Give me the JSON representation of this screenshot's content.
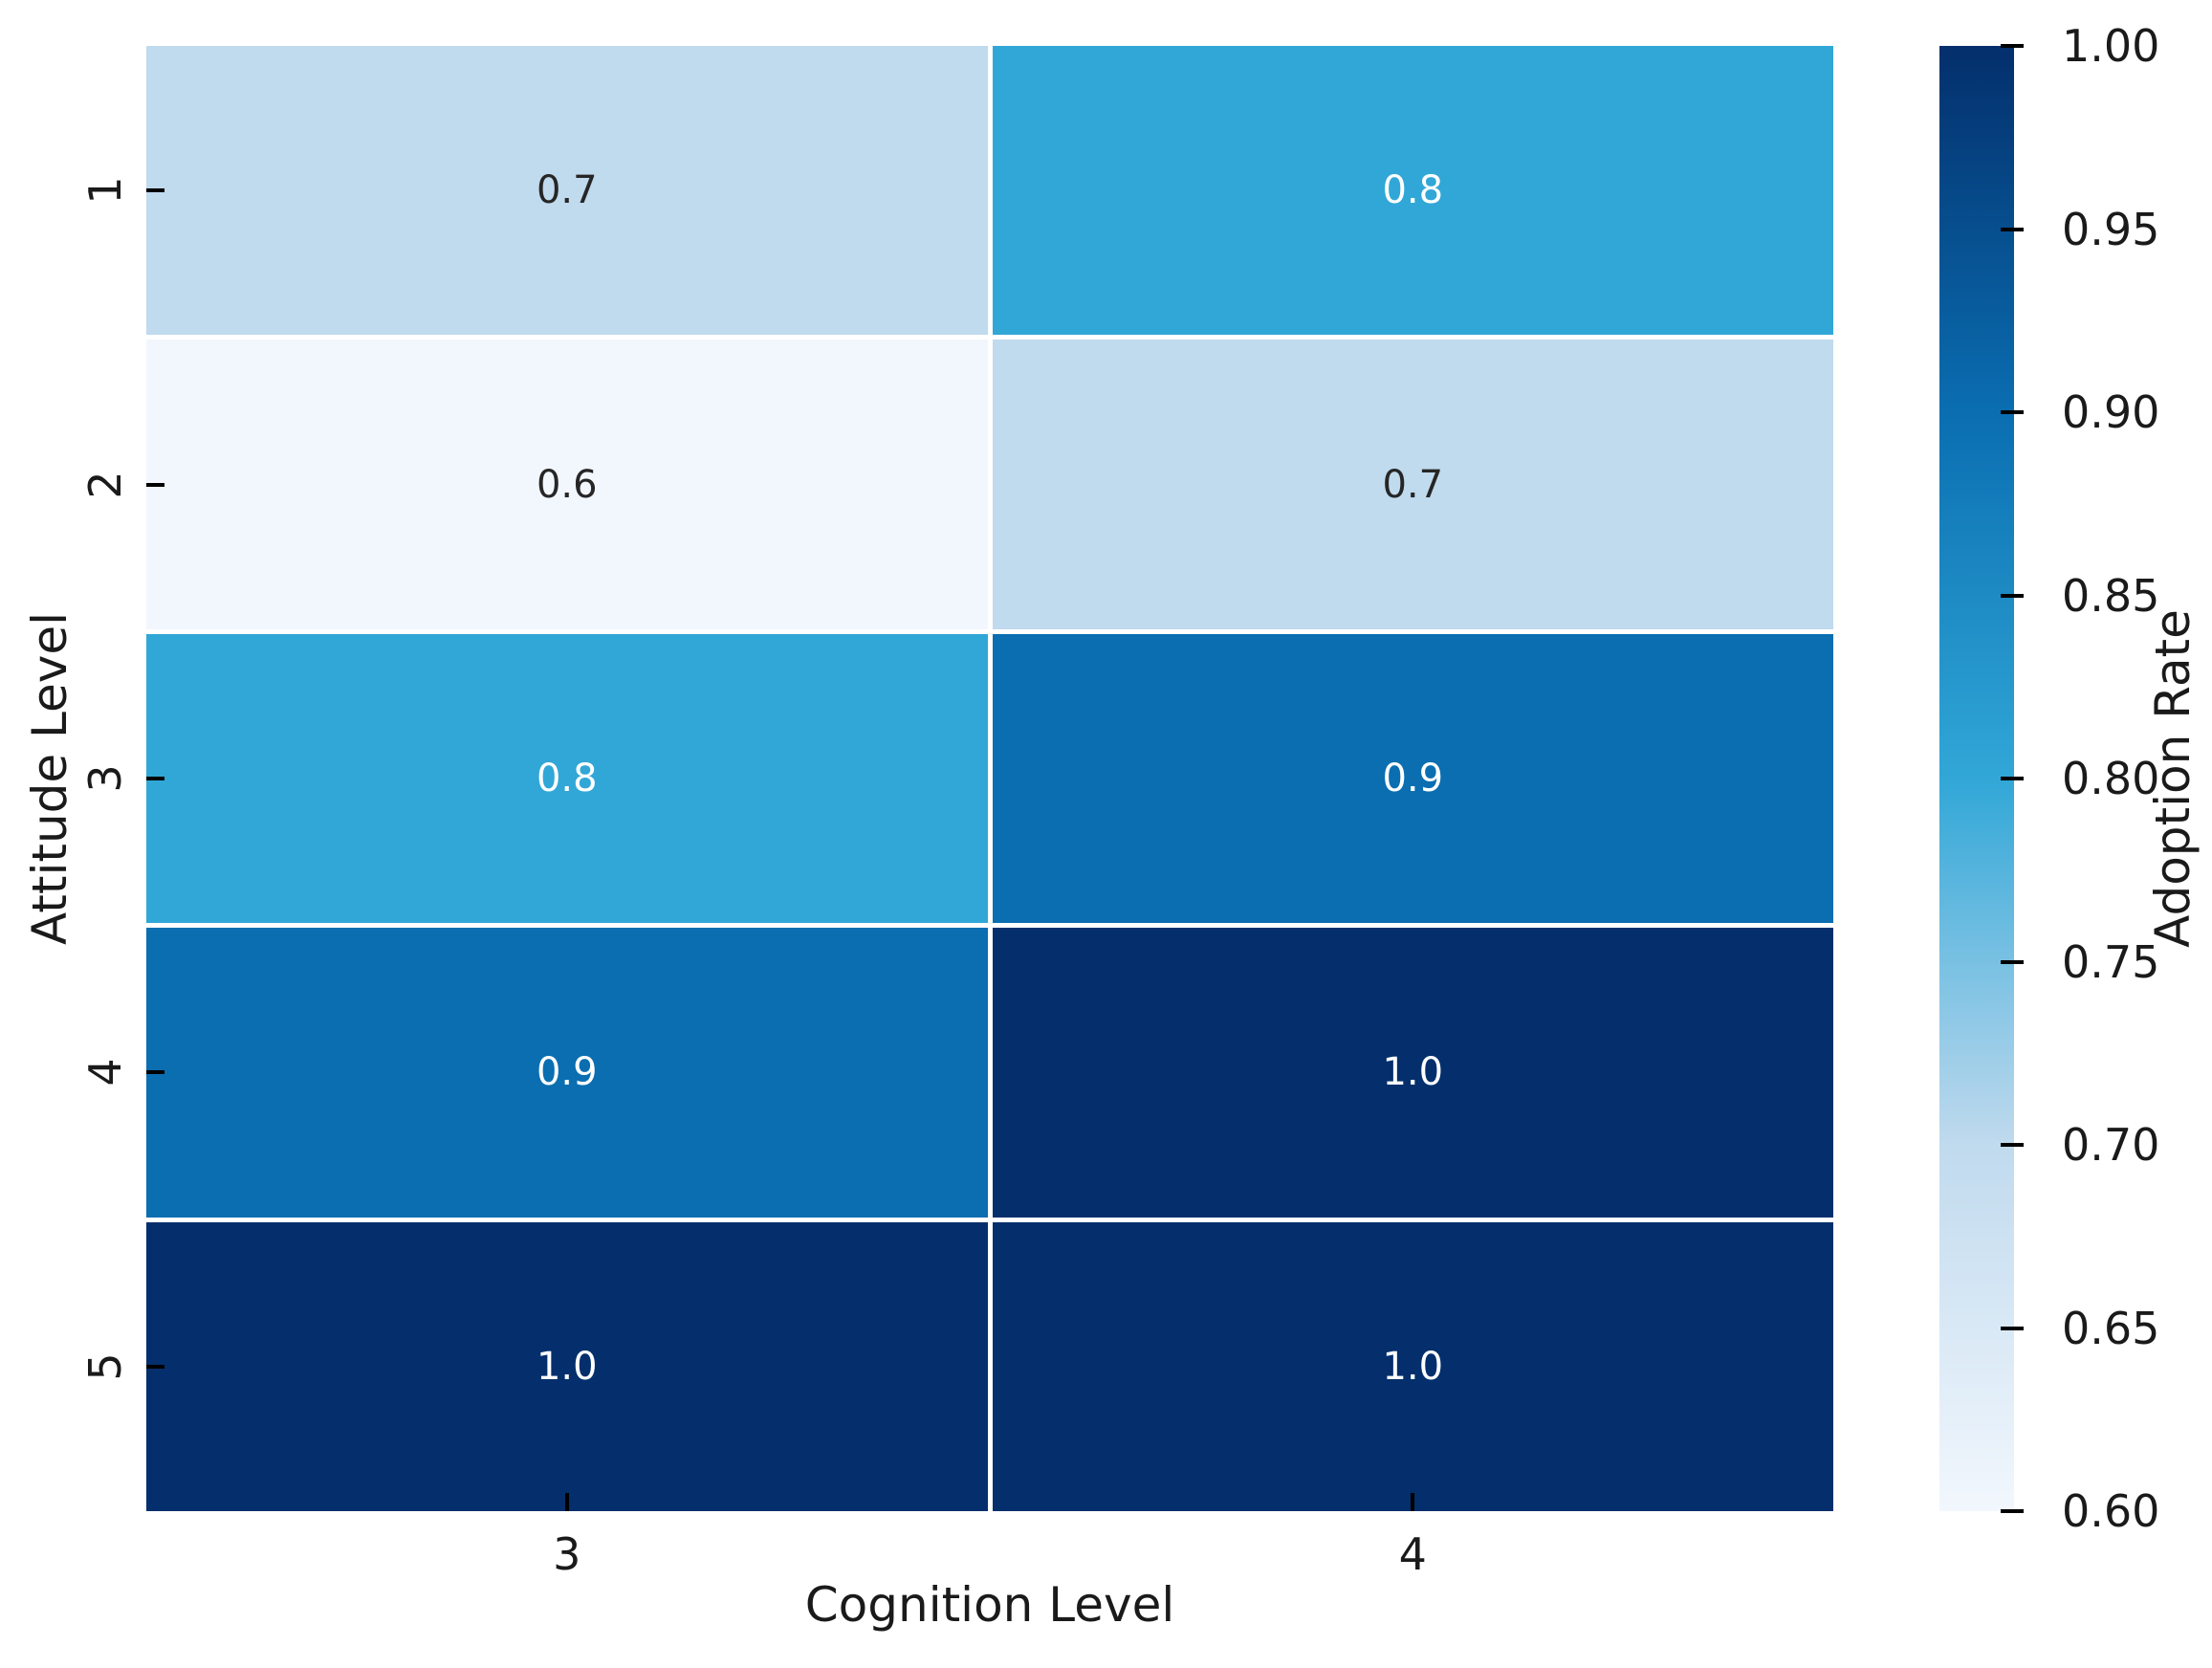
{
  "figure": {
    "background": "#ffffff",
    "text_color": "#1a1a1a"
  },
  "chart_data": {
    "type": "heatmap",
    "title": "",
    "xlabel": "Cognition Level",
    "ylabel": "Attitude Level",
    "x_categories": [
      "3",
      "4"
    ],
    "y_categories": [
      "1",
      "2",
      "3",
      "4",
      "5"
    ],
    "values": [
      [
        0.7,
        0.8
      ],
      [
        0.6,
        0.7
      ],
      [
        0.8,
        0.9
      ],
      [
        0.9,
        1.0
      ],
      [
        1.0,
        1.0
      ]
    ],
    "annotation_format_decimals": 1,
    "colormap": "Blues",
    "value_colors": {
      "0.6": "#f2f7fd",
      "0.7": "#c0daee",
      "0.8": "#31a7d7",
      "0.9": "#0a6eb1",
      "1.0": "#042f6c"
    },
    "annot_dark_text": "#262626",
    "annot_light_text": "#ffffff",
    "light_text_threshold": 0.75,
    "grid_line_color": "#ffffff",
    "colorbar": {
      "label": "Adoption Rate",
      "min": 0.6,
      "max": 1.0,
      "ticks": [
        1.0,
        0.95,
        0.9,
        0.85,
        0.8,
        0.75,
        0.7,
        0.65,
        0.6
      ],
      "tick_format_decimals": 2,
      "gradient_top": "#042f6c",
      "gradient_stops": [
        "#042f6c",
        "#0a6eb1",
        "#31a7d7",
        "#c0daee",
        "#f2f7fd"
      ]
    }
  }
}
